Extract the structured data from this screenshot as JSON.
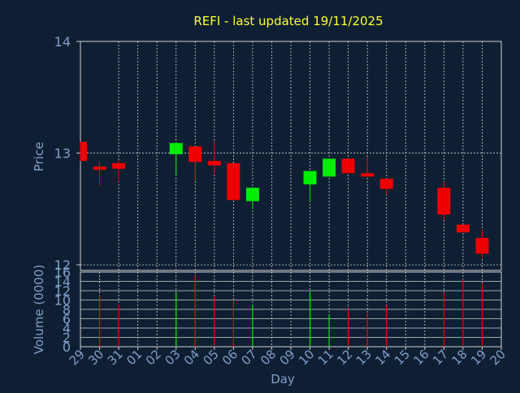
{
  "title": "REFI - last updated 19/11/2025",
  "colors": {
    "background": "#0f1f33",
    "title": "#ffff33",
    "axis_text": "#7f9fc8",
    "frame": "#d0d0d0",
    "grid": "#d0d0d0",
    "up": "#00ee00",
    "down": "#ee0000"
  },
  "chart_data": [
    {
      "type": "candlestick",
      "ylabel": "Price",
      "ylim": [
        11.95,
        14.0
      ],
      "yticks": [
        12,
        13,
        14
      ],
      "xlim": [
        29,
        51
      ],
      "grid": true,
      "candles": [
        {
          "x": 29,
          "open": 13.1,
          "close": 12.93,
          "high": 13.1,
          "low": 12.93
        },
        {
          "x": 30,
          "open": 12.88,
          "close": 12.85,
          "high": 12.93,
          "low": 12.71
        },
        {
          "x": 31,
          "open": 12.91,
          "close": 12.86,
          "high": 12.94,
          "low": 12.74
        },
        {
          "x": 34,
          "open": 12.99,
          "close": 13.09,
          "high": 13.1,
          "low": 12.8
        },
        {
          "x": 35,
          "open": 13.06,
          "close": 12.92,
          "high": 13.06,
          "low": 12.75
        },
        {
          "x": 36,
          "open": 12.93,
          "close": 12.89,
          "high": 13.11,
          "low": 12.81
        },
        {
          "x": 37,
          "open": 12.91,
          "close": 12.58,
          "high": 12.91,
          "low": 12.58
        },
        {
          "x": 38,
          "open": 12.57,
          "close": 12.69,
          "high": 12.69,
          "low": 12.5
        },
        {
          "x": 41,
          "open": 12.72,
          "close": 12.84,
          "high": 12.84,
          "low": 12.56
        },
        {
          "x": 42,
          "open": 12.79,
          "close": 12.95,
          "high": 12.95,
          "low": 12.79
        },
        {
          "x": 43,
          "open": 12.95,
          "close": 12.82,
          "high": 12.95,
          "low": 12.82
        },
        {
          "x": 44,
          "open": 12.82,
          "close": 12.79,
          "high": 12.97,
          "low": 12.79
        },
        {
          "x": 45,
          "open": 12.77,
          "close": 12.68,
          "high": 12.77,
          "low": 12.63
        },
        {
          "x": 48,
          "open": 12.69,
          "close": 12.45,
          "high": 12.74,
          "low": 12.4
        },
        {
          "x": 49,
          "open": 12.36,
          "close": 12.29,
          "high": 12.36,
          "low": 12.29
        },
        {
          "x": 50,
          "open": 12.24,
          "close": 12.1,
          "high": 12.32,
          "low": 12.06
        }
      ]
    },
    {
      "type": "bar",
      "ylabel": "Volume (0000)",
      "xlabel": "Day",
      "ylim": [
        0,
        16
      ],
      "yticks": [
        0,
        2,
        4,
        6,
        8,
        10,
        12,
        14,
        16
      ],
      "xlim": [
        29,
        51
      ],
      "grid": true,
      "xtick_labels": [
        "29",
        "30",
        "31",
        "01",
        "02",
        "03",
        "04",
        "05",
        "06",
        "07",
        "08",
        "09",
        "10",
        "11",
        "12",
        "13",
        "14",
        "15",
        "16",
        "17",
        "18",
        "19",
        "20"
      ],
      "bars": [
        {
          "x": 30,
          "value": 11.0,
          "direction": "down"
        },
        {
          "x": 31,
          "value": 9.0,
          "direction": "down"
        },
        {
          "x": 34,
          "value": 11.6,
          "direction": "up"
        },
        {
          "x": 35,
          "value": 15.2,
          "direction": "down"
        },
        {
          "x": 36,
          "value": 10.8,
          "direction": "down"
        },
        {
          "x": 37,
          "value": 10.0,
          "direction": "down"
        },
        {
          "x": 38,
          "value": 9.0,
          "direction": "up"
        },
        {
          "x": 41,
          "value": 11.8,
          "direction": "up"
        },
        {
          "x": 42,
          "value": 6.8,
          "direction": "up"
        },
        {
          "x": 43,
          "value": 8.2,
          "direction": "down"
        },
        {
          "x": 44,
          "value": 7.4,
          "direction": "down"
        },
        {
          "x": 45,
          "value": 8.8,
          "direction": "down"
        },
        {
          "x": 48,
          "value": 11.6,
          "direction": "down"
        },
        {
          "x": 49,
          "value": 14.4,
          "direction": "down"
        },
        {
          "x": 50,
          "value": 13.6,
          "direction": "down"
        }
      ]
    }
  ]
}
